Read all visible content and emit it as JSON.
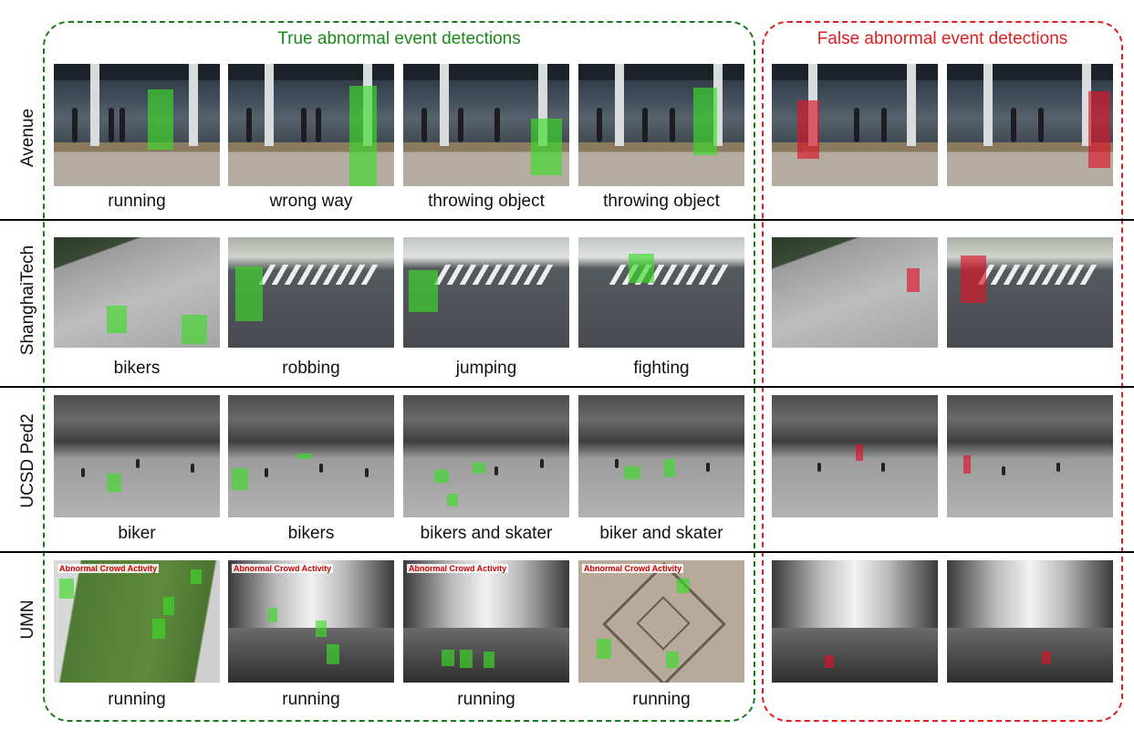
{
  "headers": {
    "true": "True abnormal event detections",
    "false": "False abnormal event detections"
  },
  "rows": [
    {
      "label": "Avenue",
      "captions": [
        "running",
        "wrong way",
        "throwing object",
        "throwing object",
        "",
        ""
      ]
    },
    {
      "label": "ShanghaiTech",
      "captions": [
        "bikers",
        "robbing",
        "jumping",
        "fighting",
        "",
        ""
      ]
    },
    {
      "label": "UCSD Ped2",
      "captions": [
        "biker",
        "bikers",
        "bikers and skater",
        "biker and skater",
        "",
        ""
      ]
    },
    {
      "label": "UMN",
      "captions": [
        "running",
        "running",
        "running",
        "running",
        "",
        ""
      ]
    }
  ],
  "overlay_text": "Abnormal Crowd Activity",
  "colors": {
    "true_border": "#1a7a1a",
    "false_border": "#e02020",
    "true_detection": "#3cdc28",
    "false_detection": "#dc1428"
  }
}
